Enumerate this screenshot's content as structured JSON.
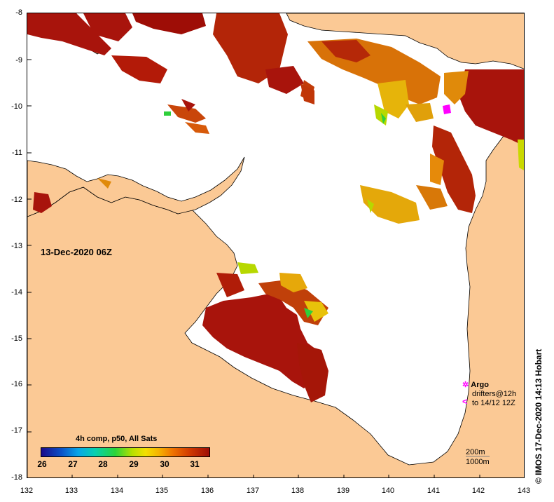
{
  "map": {
    "timestamp": "13-Dec-2020 06Z",
    "lon_ticks": [
      "132",
      "133",
      "134",
      "135",
      "136",
      "137",
      "138",
      "139",
      "140",
      "141",
      "142",
      "143"
    ],
    "lat_ticks": [
      "-8",
      "-9",
      "-10",
      "-11",
      "-12",
      "-13",
      "-14",
      "-15",
      "-16",
      "-17",
      "-18"
    ],
    "lon_range": [
      132,
      143
    ],
    "lat_range": [
      -18,
      -8
    ],
    "land_color": "#fbc995",
    "sea_color": "#ffffff"
  },
  "colorbar": {
    "title": "4h comp, p50, All Sats",
    "labels": [
      "26",
      "27",
      "28",
      "29",
      "30",
      "31"
    ],
    "range": [
      26,
      31.5
    ]
  },
  "legend": {
    "argo_label": "Argo",
    "drifters_line1": "drifters@12h",
    "drifters_line2": "to 14/12 12Z",
    "depth_200": "200m",
    "depth_1000": "1000m"
  },
  "credit": "© IMOS 17-Dec-2020 14:13 Hobart",
  "colors": {
    "sst_warm": "#a8140c",
    "sst_mid": "#e88a0a",
    "sst_cool": "#2fcf3a",
    "argo": "#ff00ff"
  }
}
